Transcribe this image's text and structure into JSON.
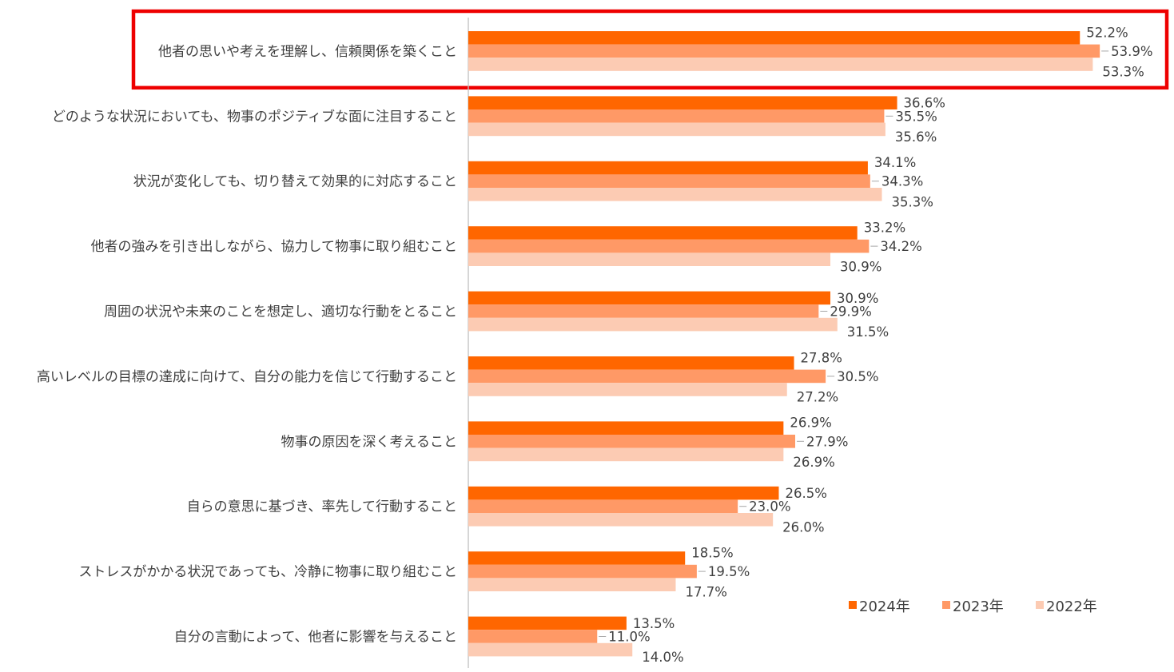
{
  "chart_data": {
    "type": "bar",
    "orientation": "horizontal",
    "categories": [
      "他者の思いや考えを理解し、信頼関係を築くこと",
      "どのような状況においても、物事のポジティブな面に注目すること",
      "状況が変化しても、切り替えて効果的に対応すること",
      "他者の強みを引き出しながら、協力して物事に取り組むこと",
      "周囲の状況や未来のことを想定し、適切な行動をとること",
      "高いレベルの目標の達成に向けて、自分の能力を信じて行動すること",
      "物事の原因を深く考えること",
      "自らの意思に基づき、率先して行動すること",
      "ストレスがかかる状況であっても、冷静に物事に取り組むこと",
      "自分の言動によって、他者に影響を与えること"
    ],
    "series": [
      {
        "name": "2024年",
        "color": "#ff6600",
        "values": [
          52.2,
          36.6,
          34.1,
          33.2,
          30.9,
          27.8,
          26.9,
          26.5,
          18.5,
          13.5
        ],
        "labels": [
          "52.2%",
          "36.6%",
          "34.1%",
          "33.2%",
          "30.9%",
          "27.8%",
          "26.9%",
          "26.5%",
          "18.5%",
          "13.5%"
        ]
      },
      {
        "name": "2023年",
        "color": "#ff9966",
        "values": [
          53.9,
          35.5,
          34.3,
          34.2,
          29.9,
          30.5,
          27.9,
          23.0,
          19.5,
          11.0
        ],
        "labels": [
          "53.9%",
          "35.5%",
          "34.3%",
          "34.2%",
          "29.9%",
          "30.5%",
          "27.9%",
          "23.0%",
          "19.5%",
          "11.0%"
        ]
      },
      {
        "name": "2022年",
        "color": "#fccbb3",
        "values": [
          53.3,
          35.6,
          35.3,
          30.9,
          31.5,
          27.2,
          26.9,
          26.0,
          17.7,
          14.0
        ],
        "labels": [
          "53.3%",
          "35.6%",
          "35.3%",
          "30.9%",
          "31.5%",
          "27.2%",
          "26.9%",
          "26.0%",
          "17.7%",
          "14.0%"
        ]
      }
    ],
    "xlim": [
      0,
      60
    ],
    "grid": false,
    "legend_position": "bottom-right",
    "highlight": {
      "category_index": 0,
      "color": "#ee0000"
    }
  }
}
